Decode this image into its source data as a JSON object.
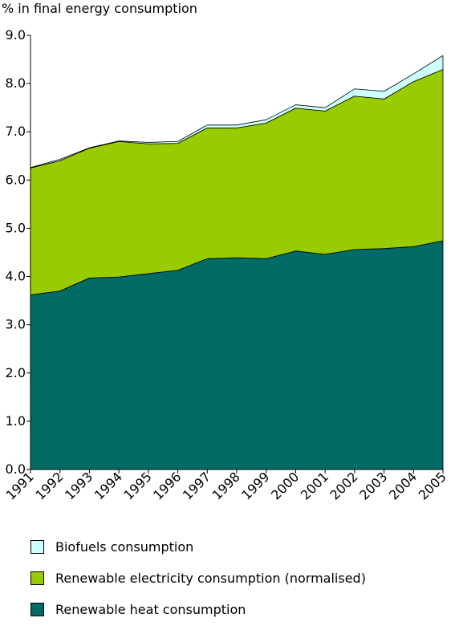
{
  "chart_data": {
    "type": "area",
    "stacked": true,
    "ylabel": "% in final energy consumption",
    "ylim": [
      0,
      9
    ],
    "yticks": [
      "0.0",
      "1.0",
      "2.0",
      "3.0",
      "4.0",
      "5.0",
      "6.0",
      "7.0",
      "8.0",
      "9.0"
    ],
    "categories": [
      "1991",
      "1992",
      "1993",
      "1994",
      "1995",
      "1996",
      "1997",
      "1998",
      "1999",
      "2000",
      "2001",
      "2002",
      "2003",
      "2004",
      "2005"
    ],
    "series": [
      {
        "name": "Renewable heat consumption",
        "color": "#006b65",
        "values": [
          3.62,
          3.7,
          3.97,
          3.99,
          4.06,
          4.13,
          4.37,
          4.39,
          4.37,
          4.53,
          4.46,
          4.56,
          4.58,
          4.62,
          4.74
        ]
      },
      {
        "name": "Renewable electricity consumption (normalised)",
        "color": "#99cc00",
        "values": [
          2.63,
          2.7,
          2.69,
          2.81,
          2.69,
          2.63,
          2.71,
          2.69,
          2.81,
          2.96,
          2.97,
          3.18,
          3.1,
          3.42,
          3.55
        ]
      },
      {
        "name": "Biofuels consumption",
        "color": "#ccffff",
        "values": [
          0.01,
          0.03,
          0.01,
          0.01,
          0.03,
          0.04,
          0.06,
          0.06,
          0.07,
          0.07,
          0.07,
          0.15,
          0.16,
          0.16,
          0.29
        ]
      }
    ],
    "legend_order": [
      2,
      1,
      0
    ],
    "grid": false,
    "legend_placement": "bottom"
  }
}
